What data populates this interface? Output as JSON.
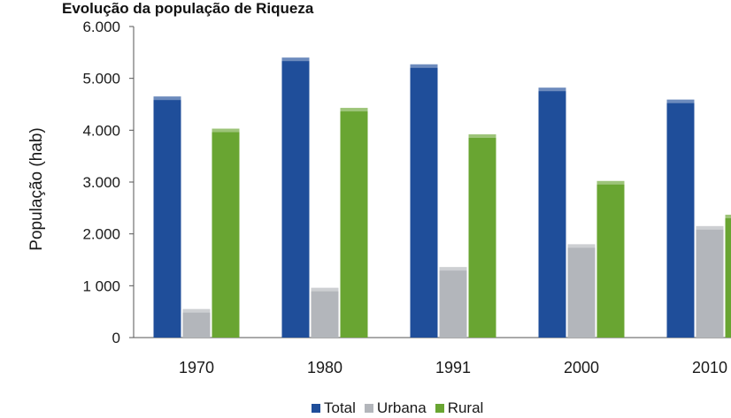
{
  "chart_data": {
    "type": "bar",
    "title": "Evolução da população de Riqueza",
    "ylabel": "População (hab)",
    "xlabel": "",
    "categories": [
      "1970",
      "1980",
      "1991",
      "2000",
      "2010"
    ],
    "series": [
      {
        "name": "Total",
        "values": [
          4650,
          5400,
          5270,
          4820,
          4590
        ],
        "color": "#1f4e9a"
      },
      {
        "name": "Urbana",
        "values": [
          550,
          960,
          1360,
          1800,
          2150
        ],
        "color": "#b3b6bb"
      },
      {
        "name": "Rural",
        "values": [
          4030,
          4430,
          3920,
          3020,
          2370
        ],
        "color": "#69a532"
      }
    ],
    "ylim": [
      0,
      6000
    ],
    "yticks": [
      0,
      1000,
      2000,
      3000,
      4000,
      5000,
      6000
    ],
    "ytick_labels": [
      "0",
      "1 000",
      "2.000",
      "3.000",
      "4.000",
      "5.000",
      "6.000"
    ],
    "grid": false,
    "legend_position": "bottom"
  }
}
